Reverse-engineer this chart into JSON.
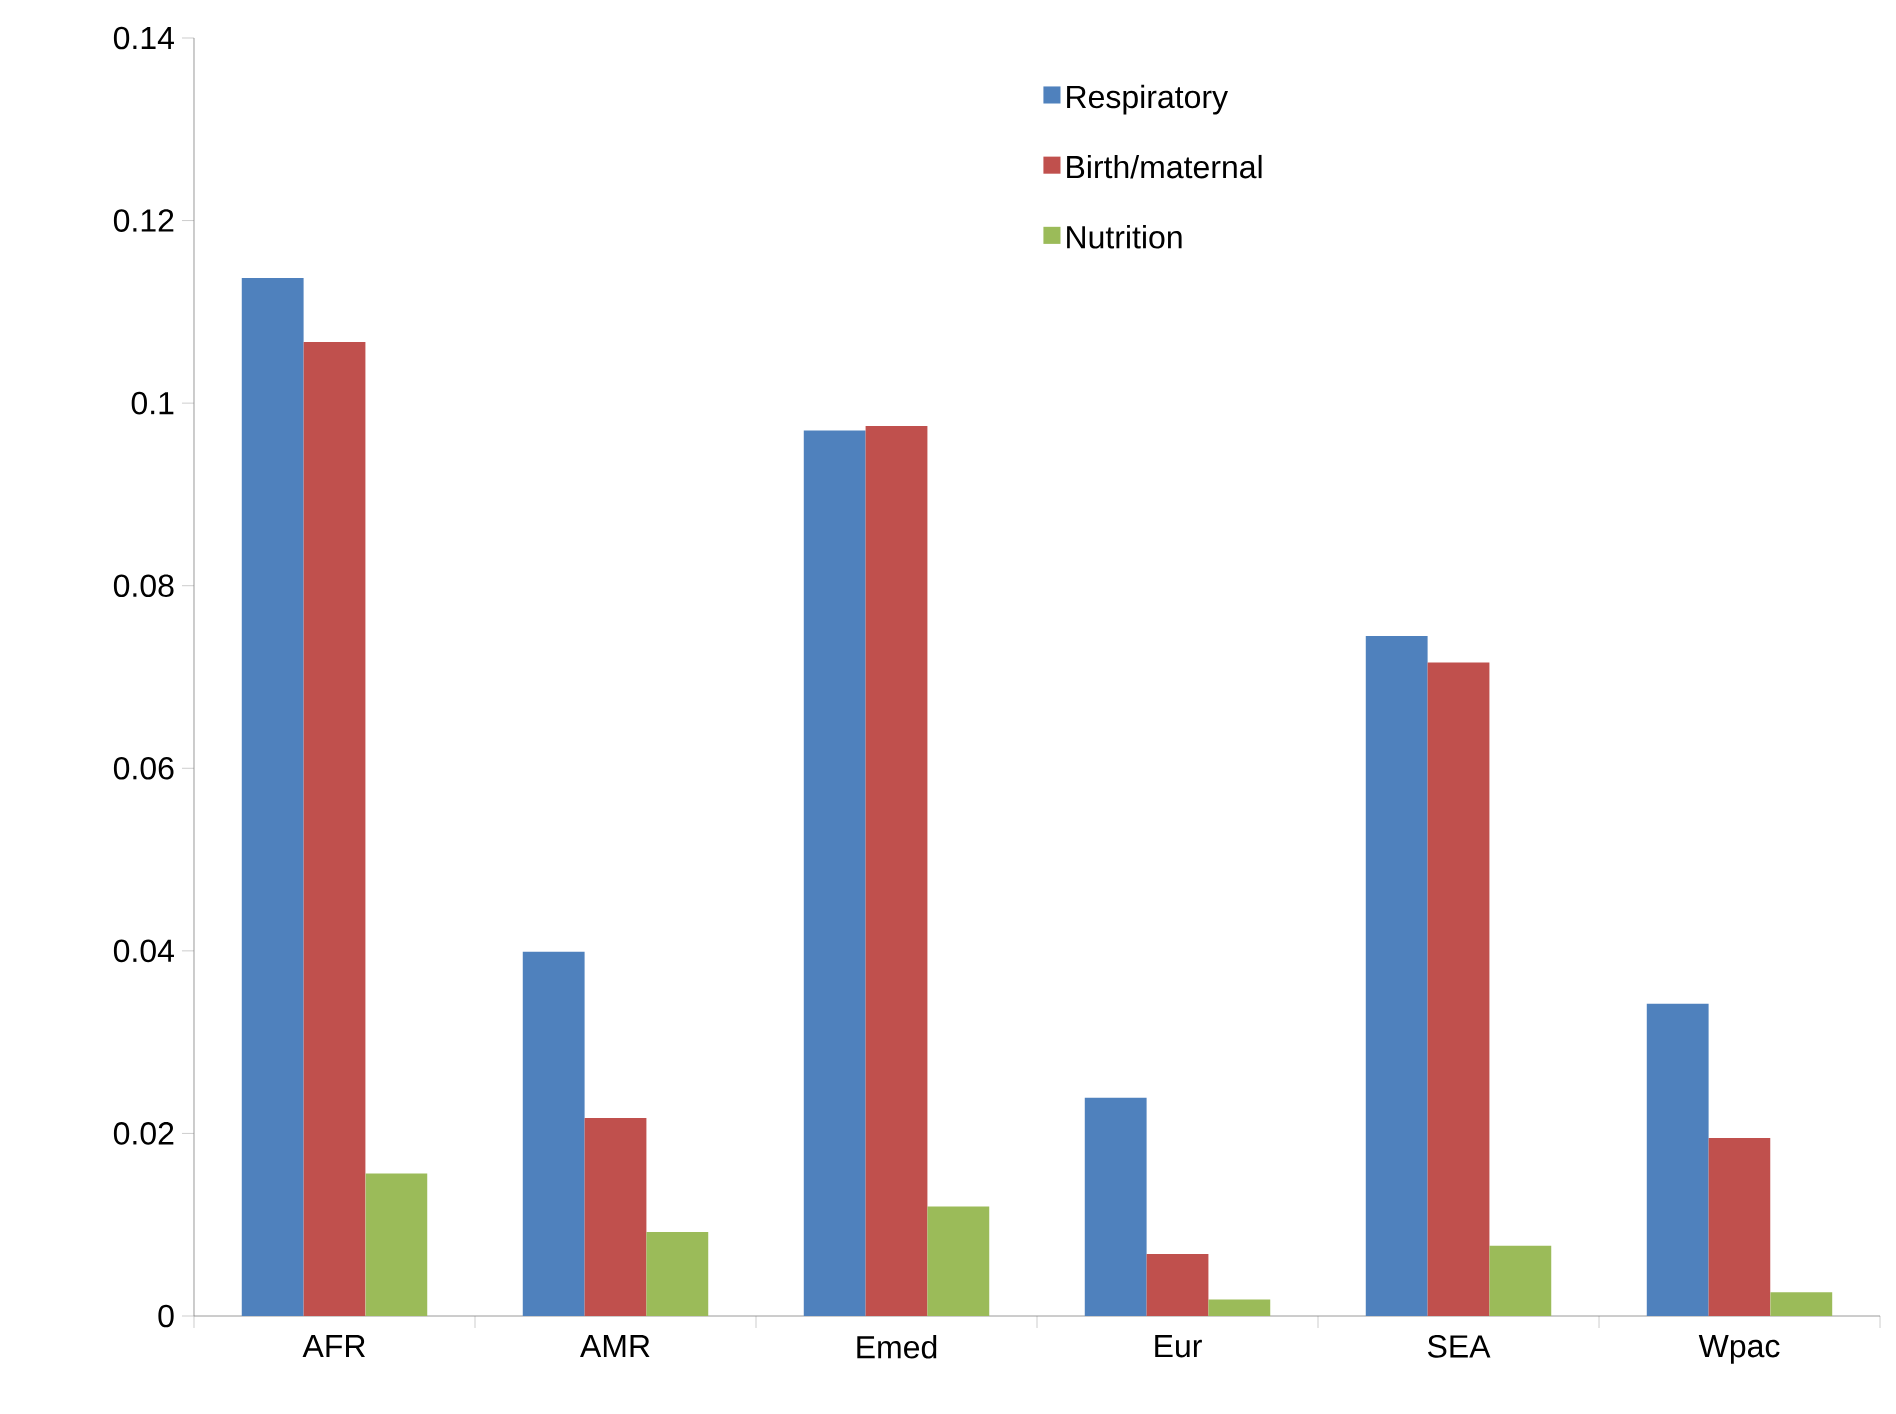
{
  "chart_data": {
    "type": "bar",
    "categories": [
      "AFR",
      "AMR",
      "Emed",
      "Eur",
      "SEA",
      "Wpac"
    ],
    "series": [
      {
        "name": "Respiratory",
        "color": "#4f81bd",
        "values": [
          0.1137,
          0.0399,
          0.097,
          0.0239,
          0.0745,
          0.0342
        ]
      },
      {
        "name": "Birth/maternal",
        "color": "#c0504d",
        "values": [
          0.1067,
          0.0217,
          0.0975,
          0.0068,
          0.0716,
          0.0195
        ]
      },
      {
        "name": "Nutrition",
        "color": "#9bbb59",
        "values": [
          0.0156,
          0.0092,
          0.012,
          0.0018,
          0.0077,
          0.0026
        ]
      }
    ],
    "ylim": [
      0,
      0.14
    ],
    "yticks": [
      0,
      0.02,
      0.04,
      0.06,
      0.08,
      0.1,
      0.12,
      0.14
    ],
    "legend": "top right"
  }
}
